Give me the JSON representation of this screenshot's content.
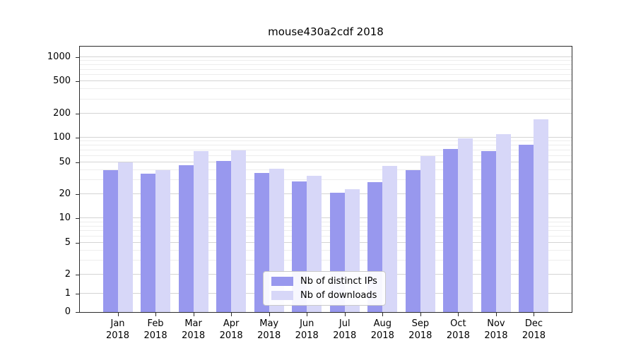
{
  "title": "mouse430a2cdf 2018",
  "chart_data": {
    "type": "bar",
    "title": "mouse430a2cdf 2018",
    "yscale": "symlog",
    "symlog_linthresh": 2,
    "grid": true,
    "ylim": [
      0,
      1200
    ],
    "yticks": [
      0,
      1,
      2,
      5,
      10,
      20,
      50,
      100,
      200,
      500,
      1000
    ],
    "yticks_minor": [
      3,
      4,
      6,
      7,
      8,
      9,
      30,
      40,
      60,
      70,
      80,
      90,
      300,
      400,
      600,
      700,
      800,
      900
    ],
    "categories": [
      "Jan",
      "Feb",
      "Mar",
      "Apr",
      "May",
      "Jun",
      "Jul",
      "Aug",
      "Sep",
      "Oct",
      "Nov",
      "Dec"
    ],
    "year": "2018",
    "series": [
      {
        "name": "Nb of distinct IPs",
        "color": "#9898ee",
        "values": [
          40,
          36,
          46,
          52,
          37,
          29,
          21,
          28,
          40,
          73,
          68,
          82
        ]
      },
      {
        "name": "Nb of downloads",
        "color": "#d7d7f8",
        "values": [
          50,
          40,
          68,
          70,
          41,
          34,
          23,
          45,
          60,
          98,
          112,
          170
        ]
      }
    ],
    "legend_position": "lower-center"
  }
}
